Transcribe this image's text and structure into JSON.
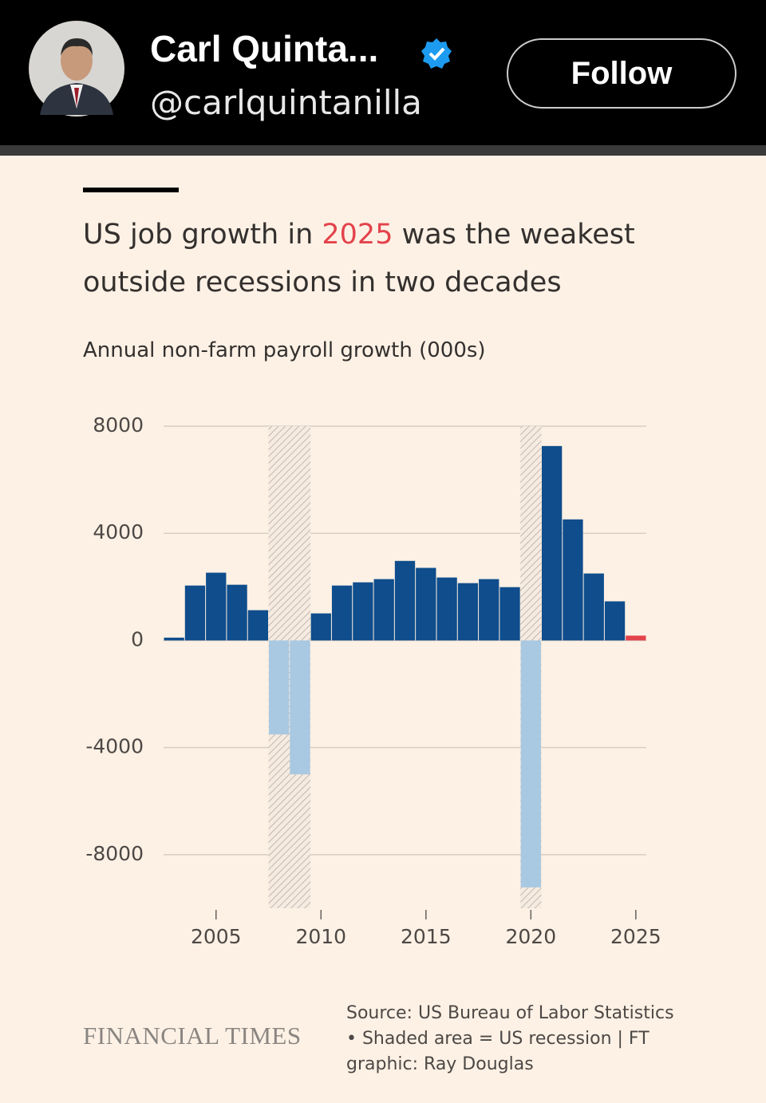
{
  "header": {
    "name": "Carl Quinta...",
    "handle": "@carlquintanilla",
    "button": "Follow"
  },
  "chart_data": {
    "type": "bar",
    "title": [
      "US job growth in ",
      "2025",
      " was the weakest",
      "outside recessions in two decades"
    ],
    "subtitle": "Annual non-farm payroll growth (000s)",
    "x": [
      2003,
      2004,
      2005,
      2006,
      2007,
      2008,
      2009,
      2010,
      2011,
      2012,
      2013,
      2014,
      2015,
      2016,
      2017,
      2018,
      2019,
      2020,
      2021,
      2022,
      2023,
      2024,
      2025
    ],
    "values": [
      105,
      2050,
      2530,
      2080,
      1130,
      -3510,
      -5000,
      1010,
      2050,
      2170,
      2290,
      2970,
      2710,
      2350,
      2140,
      2290,
      1990,
      -9220,
      7260,
      4520,
      2500,
      1460,
      180
    ],
    "colors": {
      "positive": "#0f4d8c",
      "negative": "#a9c8e2",
      "latest": "#e3434c",
      "title_highlight": "#e3434c"
    },
    "recessions": [
      [
        2008,
        2009
      ],
      [
        2020,
        2020
      ]
    ],
    "xlim": [
      2002.5,
      2025.5
    ],
    "xticks": [
      2005,
      2010,
      2015,
      2020,
      2025
    ],
    "ylim": [
      -10000,
      8000
    ],
    "yticks": [
      -8000,
      -4000,
      0,
      4000,
      8000
    ],
    "grid": true,
    "logo": "FINANCIAL TIMES",
    "source": "Source: US Bureau of Labor Statistics • Shaded area = US recession | FT graphic: Ray Douglas"
  }
}
